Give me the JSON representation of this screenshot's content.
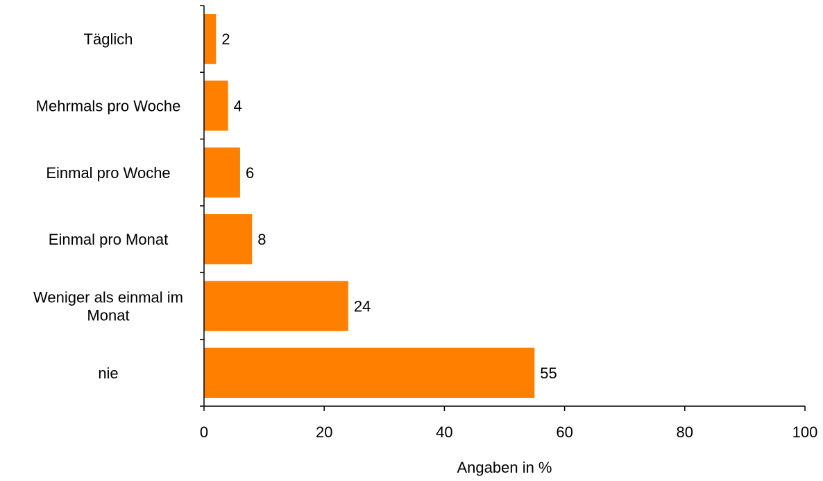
{
  "chart_data": {
    "type": "bar",
    "orientation": "horizontal",
    "categories": [
      [
        "Täglich"
      ],
      [
        "Mehrmals pro Woche"
      ],
      [
        "Einmal pro Woche"
      ],
      [
        "Einmal pro Monat"
      ],
      [
        "Weniger als einmal im",
        "Monat"
      ],
      [
        "nie"
      ]
    ],
    "values": [
      2,
      4,
      6,
      8,
      24,
      55
    ],
    "data_labels": [
      "2",
      "4",
      "6",
      "8",
      "24",
      "55"
    ],
    "xlabel": "Angaben in %",
    "ylabel": "",
    "xlim": [
      0,
      100
    ],
    "x_ticks": [
      0,
      20,
      40,
      60,
      80,
      100
    ],
    "grid": false,
    "legend": "none",
    "bar_color": "#FF8000"
  }
}
